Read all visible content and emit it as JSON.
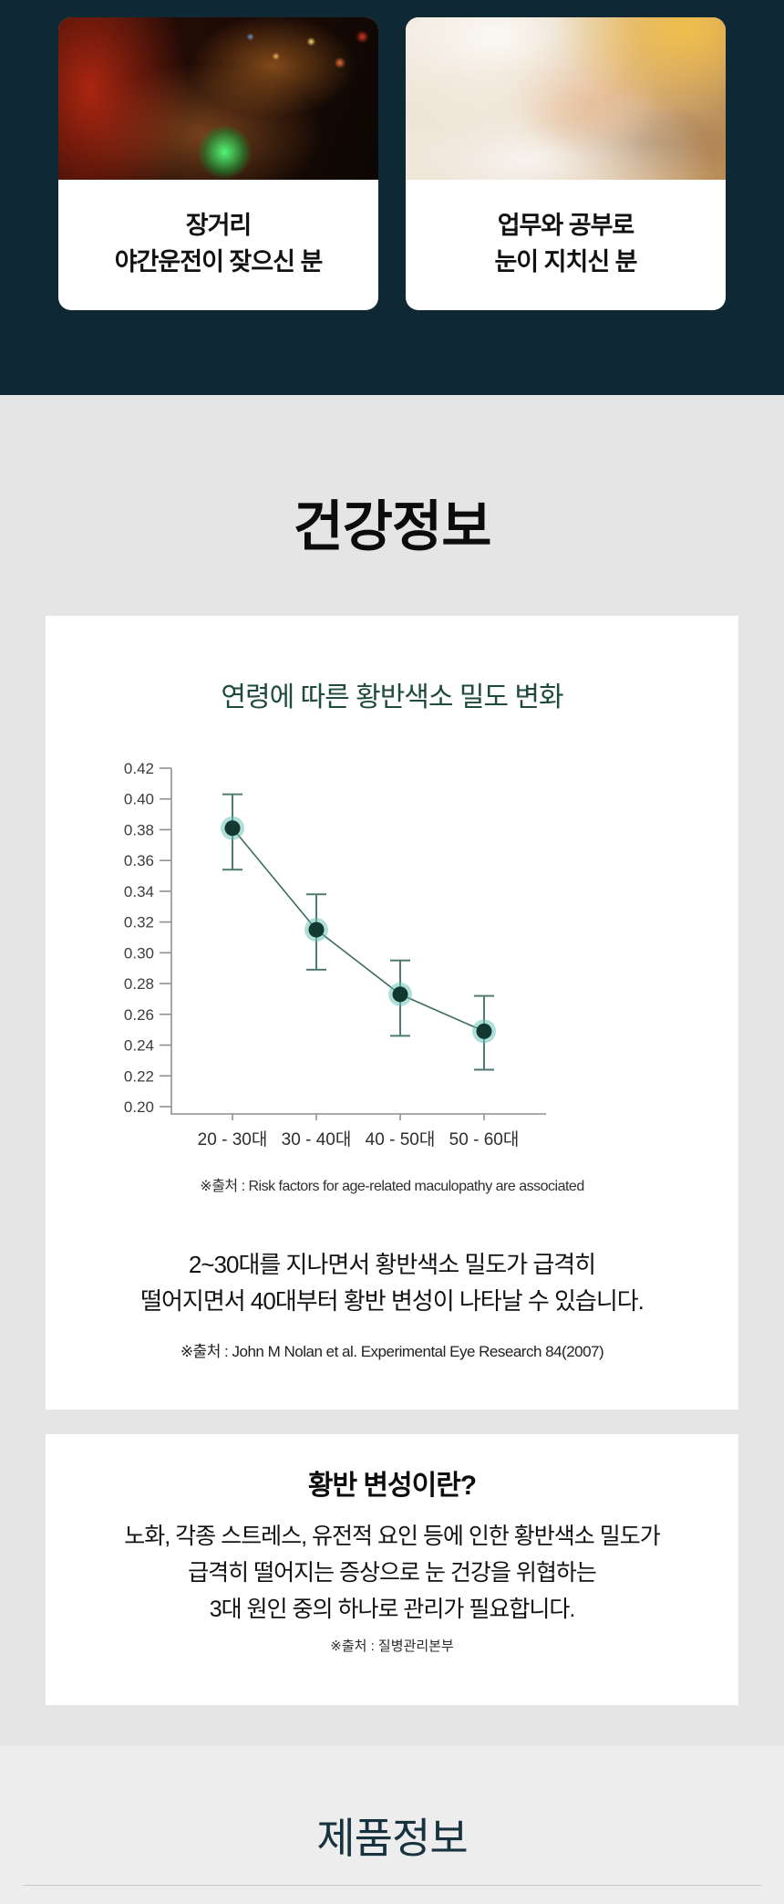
{
  "theme": {
    "dark_bg": "#0e2933",
    "gray_bg": "#e5e5e5",
    "footer_bg": "#ededed",
    "card_bg": "#ffffff",
    "chart_title_green": "#1f4a3e",
    "product_title_navy": "#16333e",
    "axis_color": "#8f8f8f",
    "line_color": "#3c6b62",
    "errorbar_color": "#4e7a71",
    "point_halo": "#5fc0b2",
    "point_core": "#12382f",
    "tick_label_color": "#3c3c3c",
    "x_label_color": "#2e2e2e"
  },
  "hero": {
    "cards": [
      {
        "image": "night-driving-photo",
        "line1": "장거리",
        "line2": "야간운전이 잦으신 분"
      },
      {
        "image": "writing-study-photo",
        "line1": "업무와 공부로",
        "line2": "눈이 지치신 분"
      }
    ]
  },
  "health_section": {
    "title": "건강정보",
    "chart_card": {
      "chart_title": "연령에 따른 황반색소 밀도 변화",
      "chart_source": "※출처 : Risk factors for age-related maculopathy are associated",
      "body_line1": "2~30대를 지나면서 황반색소 밀도가 급격히",
      "body_line2": "떨어지면서 40대부터 황반 변성이 나타날 수 있습니다.",
      "body_source": "※출처 : John M Nolan et al. Experimental Eye Research 84(2007)"
    },
    "macular_card": {
      "title": "황반 변성이란?",
      "body_line1": "노화, 각종 스트레스, 유전적 요인 등에 인한 황반색소 밀도가",
      "body_line2": "급격히 떨어지는 증상으로 눈 건강을 위협하는",
      "body_line3": "3대 원인 중의 하나로 관리가 필요합니다.",
      "source": "※출처 : 질병관리본부"
    }
  },
  "product_section": {
    "title": "제품정보"
  },
  "chart_data": {
    "type": "line",
    "title": "연령에 따른 황반색소 밀도 변화",
    "categories": [
      "20 - 30대",
      "30 - 40대",
      "40 - 50대",
      "50 - 60대"
    ],
    "series": [
      {
        "name": "황반색소 밀도",
        "values": [
          0.381,
          0.315,
          0.273,
          0.249
        ],
        "error_high": [
          0.403,
          0.338,
          0.295,
          0.272
        ],
        "error_low": [
          0.354,
          0.289,
          0.246,
          0.224
        ]
      }
    ],
    "ylim": [
      0.2,
      0.42
    ],
    "ytick_step": 0.02,
    "ytick_format_decimals": 2,
    "grid": false,
    "legend": false,
    "error_bars": true
  }
}
